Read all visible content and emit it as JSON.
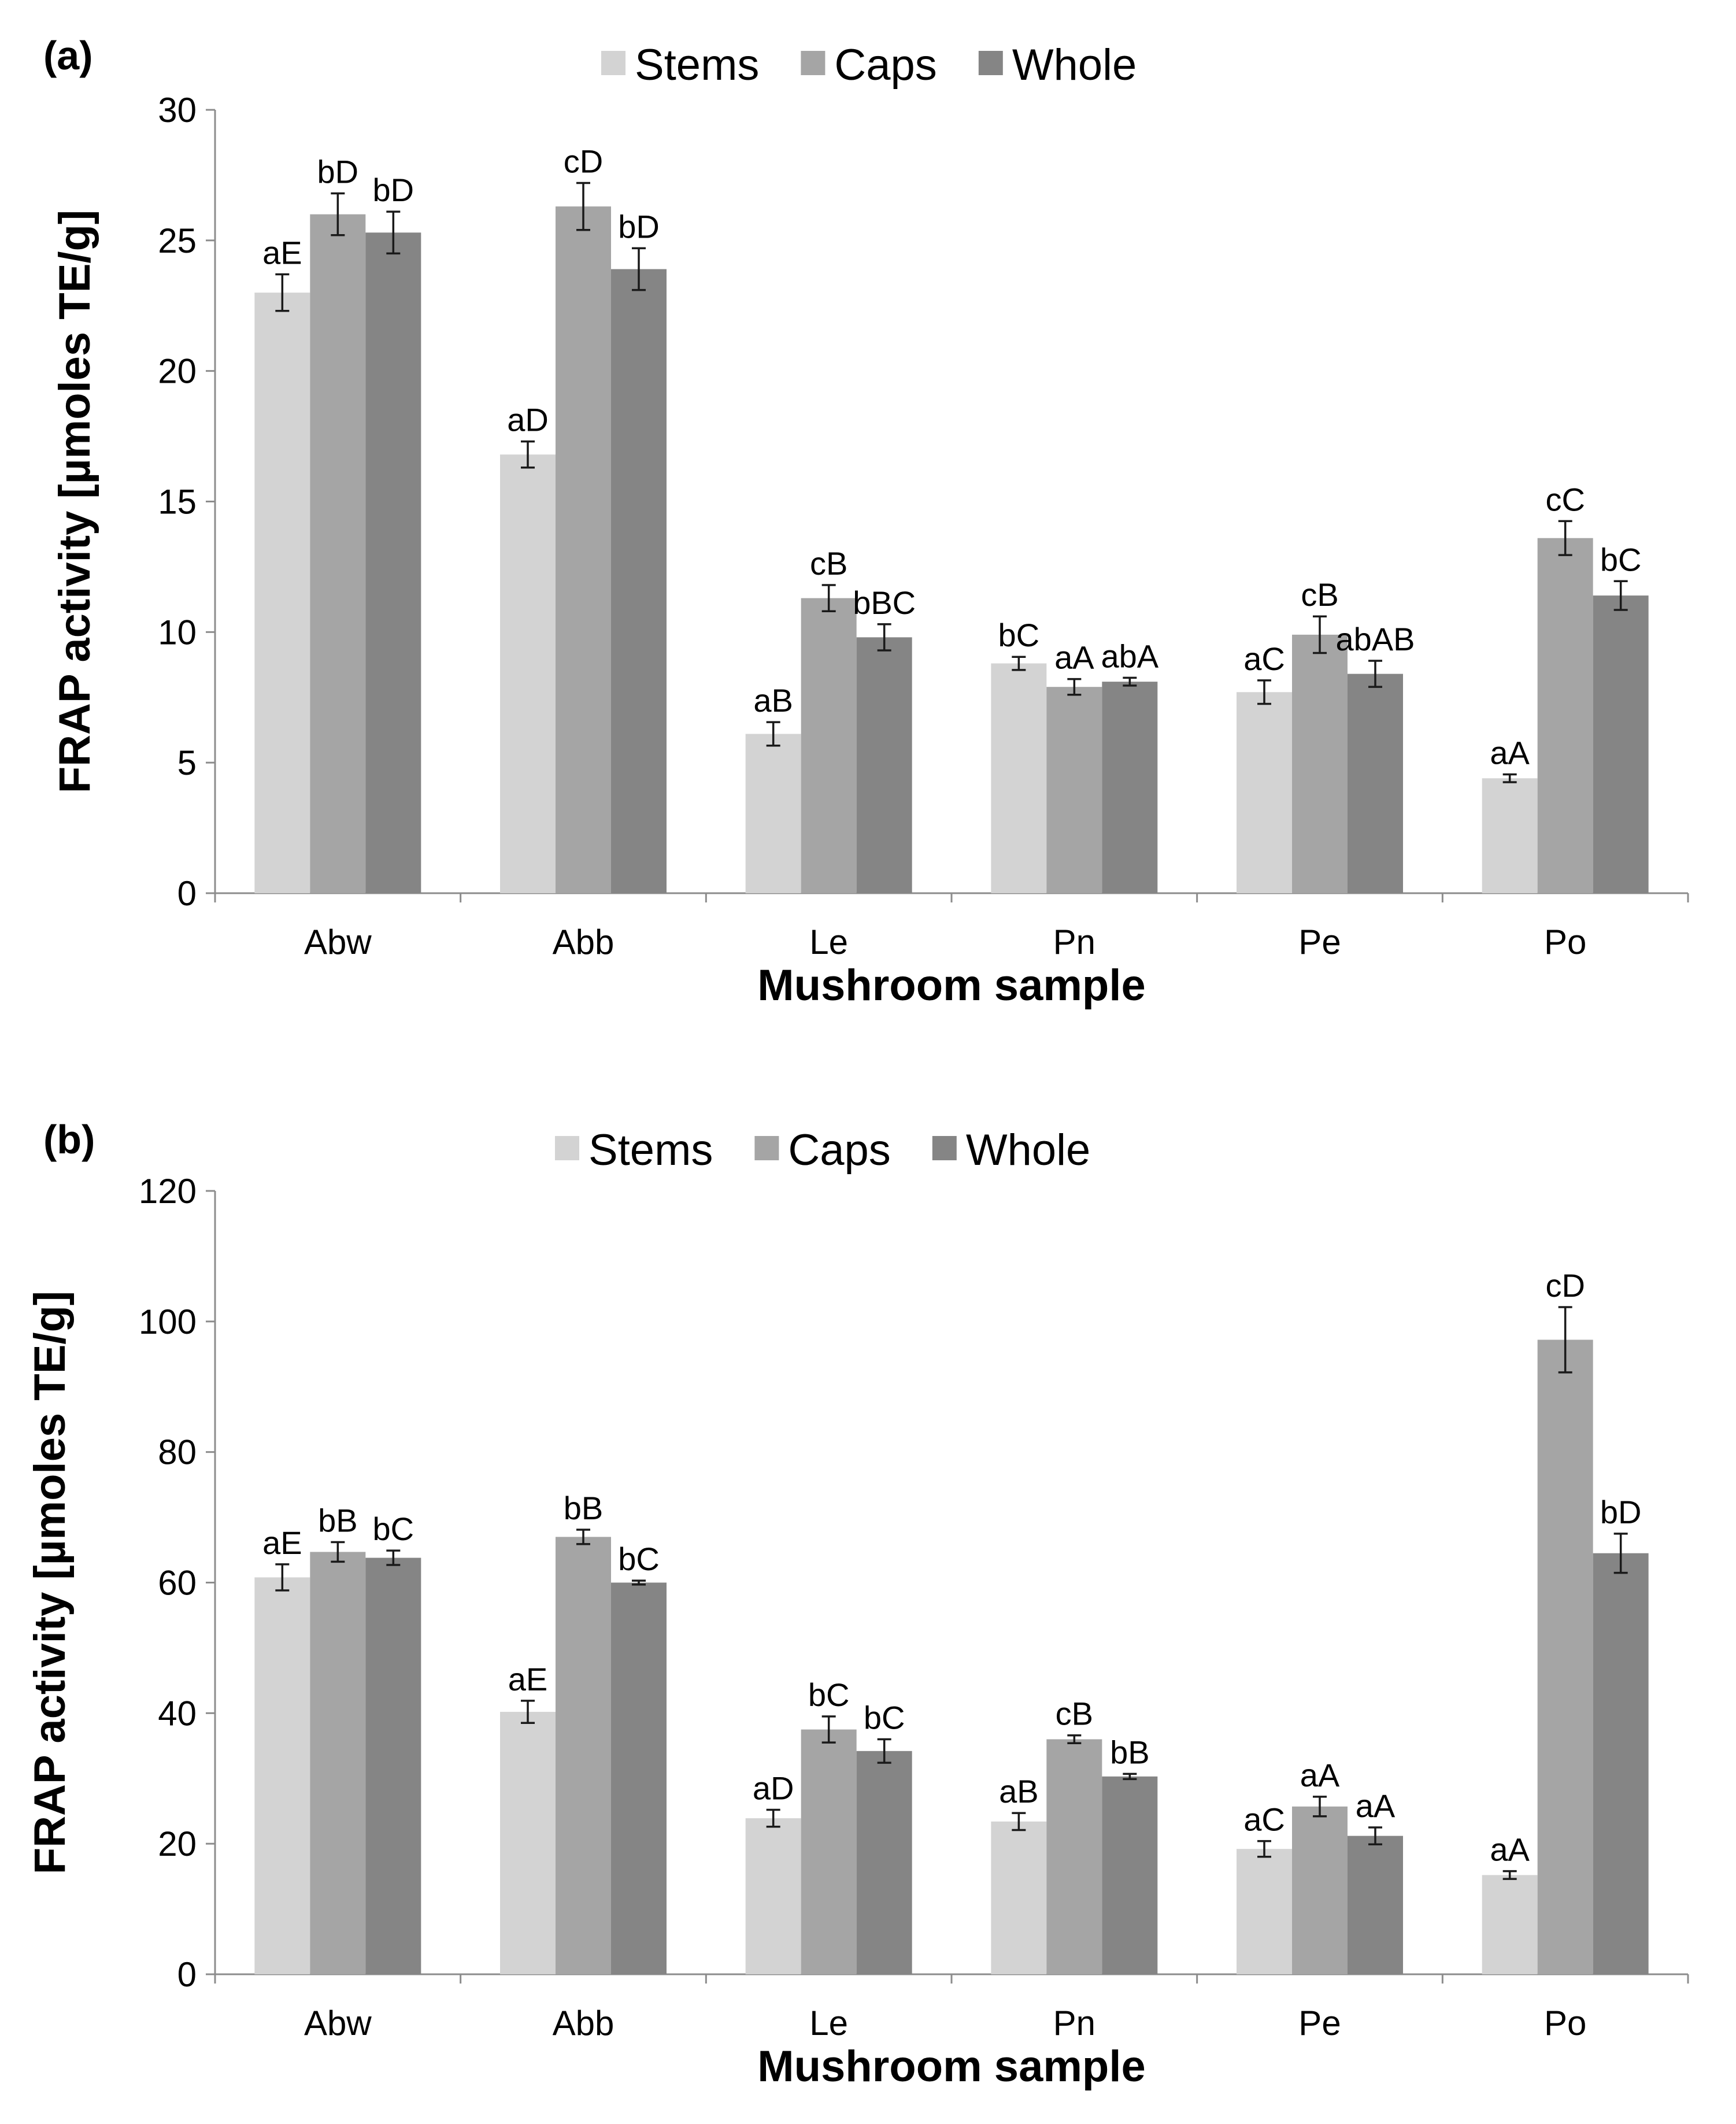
{
  "colors": {
    "Stems": "#d3d3d3",
    "Caps": "#a5a5a5",
    "Whole": "#858585"
  },
  "chart_data": [
    {
      "type": "bar",
      "panel": "(a)",
      "categories": [
        "Abw",
        "Abb",
        "Le",
        "Pn",
        "Pe",
        "Po"
      ],
      "series": [
        {
          "name": "Stems",
          "values": [
            23.0,
            16.8,
            6.1,
            8.8,
            7.7,
            4.4
          ],
          "errors": [
            0.7,
            0.5,
            0.45,
            0.25,
            0.45,
            0.15
          ],
          "labels": [
            "aE",
            "aD",
            "aB",
            "bC",
            "aC",
            "aA"
          ]
        },
        {
          "name": "Caps",
          "values": [
            26.0,
            26.3,
            11.3,
            7.9,
            9.9,
            13.6
          ],
          "errors": [
            0.8,
            0.9,
            0.5,
            0.3,
            0.7,
            0.65
          ],
          "labels": [
            "bD",
            "cD",
            "cB",
            "aA",
            "cB",
            "cC"
          ]
        },
        {
          "name": "Whole",
          "values": [
            25.3,
            23.9,
            9.8,
            8.1,
            8.4,
            11.4
          ],
          "errors": [
            0.8,
            0.8,
            0.5,
            0.15,
            0.5,
            0.55
          ],
          "labels": [
            "bD",
            "bD",
            "bBC",
            "abA",
            "abAB",
            "bC"
          ]
        }
      ],
      "xlabel": "Mushroom sample",
      "ylabel": "FRAP activity [µmoles TE/g]",
      "ylim": [
        0,
        30
      ],
      "yticks": [
        0,
        5,
        10,
        15,
        20,
        25,
        30
      ],
      "legend": "top-center"
    },
    {
      "type": "bar",
      "panel": "(b)",
      "categories": [
        "Abw",
        "Abb",
        "Le",
        "Pn",
        "Pe",
        "Po"
      ],
      "series": [
        {
          "name": "Stems",
          "values": [
            60.8,
            40.2,
            23.9,
            23.4,
            19.2,
            15.2
          ],
          "errors": [
            2.0,
            1.7,
            1.3,
            1.3,
            1.2,
            0.6
          ],
          "labels": [
            "aE",
            "aE",
            "aD",
            "aB",
            "aC",
            "aA"
          ]
        },
        {
          "name": "Caps",
          "values": [
            64.7,
            67.0,
            37.5,
            36.0,
            25.7,
            97.2
          ],
          "errors": [
            1.5,
            1.1,
            2.0,
            0.6,
            1.5,
            5.0
          ],
          "labels": [
            "bB",
            "bB",
            "bC",
            "cB",
            "aA",
            "cD"
          ]
        },
        {
          "name": "Whole",
          "values": [
            63.8,
            60.0,
            34.2,
            30.3,
            21.2,
            64.5
          ],
          "errors": [
            1.1,
            0.3,
            1.8,
            0.4,
            1.3,
            3.0
          ],
          "labels": [
            "bC",
            "bC",
            "bC",
            "bB",
            "aA",
            "bD"
          ]
        }
      ],
      "xlabel": "Mushroom sample",
      "ylabel": "FRAP activity [µmoles TE/g]",
      "ylim": [
        0,
        120
      ],
      "yticks": [
        0,
        20,
        40,
        60,
        80,
        100,
        120
      ],
      "legend": "top-center"
    }
  ]
}
